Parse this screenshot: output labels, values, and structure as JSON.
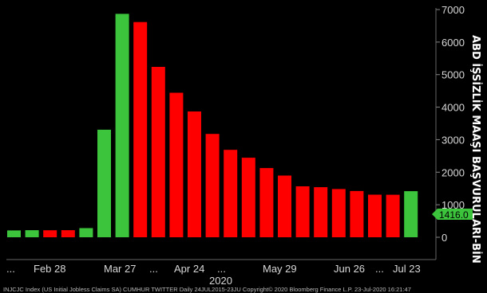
{
  "chart_data": {
    "type": "bar",
    "title": "",
    "ylabel": "ABD İŞSİZLİK MAAŞI BAŞVURULARI-BİN",
    "ylim": [
      0,
      7000
    ],
    "yticks": [
      0,
      1000,
      2000,
      3000,
      4000,
      5000,
      6000,
      7000
    ],
    "xtick_labels": [
      "...",
      "Feb 28",
      "Mar 27",
      "...",
      "Apr 24",
      "...",
      "May 29",
      "Jun 26",
      "...",
      "Jul 23"
    ],
    "year_label": "2020",
    "values": [
      211,
      219,
      216,
      217,
      282,
      3307,
      6867,
      6615,
      5237,
      4442,
      3867,
      3176,
      2687,
      2446,
      2126,
      1897,
      1566,
      1540,
      1482,
      1422,
      1310,
      1307,
      1416
    ],
    "colors": [
      "#3cc43c",
      "#3cc43c",
      "#ff0000",
      "#ff0000",
      "#3cc43c",
      "#3cc43c",
      "#3cc43c",
      "#ff0000",
      "#ff0000",
      "#ff0000",
      "#ff0000",
      "#ff0000",
      "#ff0000",
      "#ff0000",
      "#ff0000",
      "#ff0000",
      "#ff0000",
      "#ff0000",
      "#ff0000",
      "#ff0000",
      "#ff0000",
      "#ff0000",
      "#3cc43c"
    ],
    "last_value_label": "1416.0",
    "grid": false,
    "background": "#000000"
  },
  "footer_text": "INJCJC Index (US Initial Jobless Claims SA) CUMHUR TWITTER  Daily 24JUL2015-23JU      Copyright© 2020 Bloomberg Finance L.P.      23-Jul-2020 16:21:47"
}
